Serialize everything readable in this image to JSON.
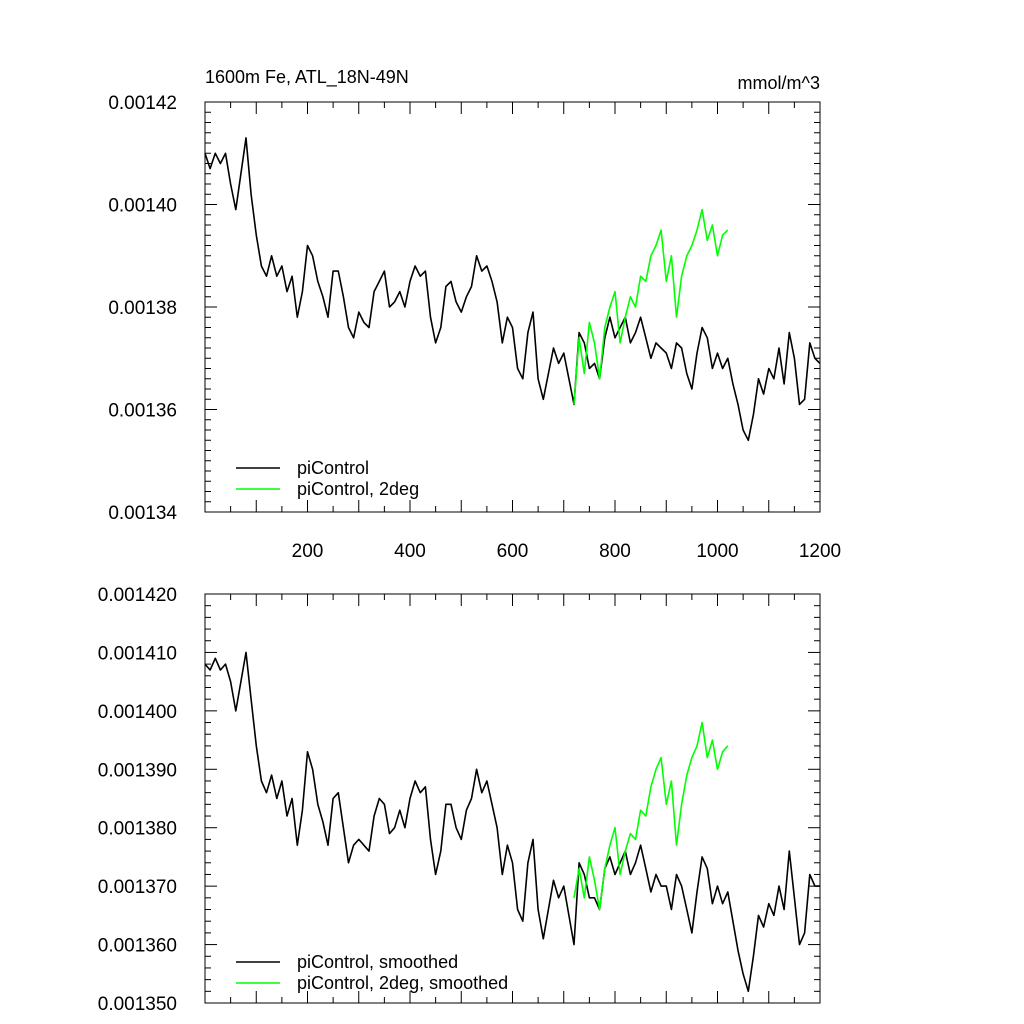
{
  "chart_data": [
    {
      "type": "line",
      "title": "1600m Fe, ATL_18N-49N",
      "units": "mmol/m^3",
      "xlim": [
        0,
        1200
      ],
      "ylim": [
        0.00134,
        0.00142
      ],
      "x_ticks": [
        200,
        400,
        600,
        800,
        1000,
        1200
      ],
      "y_ticks": [
        "0.00134",
        "0.00136",
        "0.00138",
        "0.00140",
        "0.00142"
      ],
      "legend_position": "bottom-left",
      "series": [
        {
          "name": "piControl",
          "color": "#000000",
          "x": [
            0,
            10,
            20,
            30,
            40,
            50,
            60,
            70,
            80,
            90,
            100,
            110,
            120,
            130,
            140,
            150,
            160,
            170,
            180,
            190,
            200,
            210,
            220,
            230,
            240,
            250,
            260,
            270,
            280,
            290,
            300,
            310,
            320,
            330,
            340,
            350,
            360,
            370,
            380,
            390,
            400,
            410,
            420,
            430,
            440,
            450,
            460,
            470,
            480,
            490,
            500,
            510,
            520,
            530,
            540,
            550,
            560,
            570,
            580,
            590,
            600,
            610,
            620,
            630,
            640,
            650,
            660,
            670,
            680,
            690,
            700,
            710,
            720,
            730,
            740,
            750,
            760,
            770,
            780,
            790,
            800,
            810,
            820,
            830,
            840,
            850,
            860,
            870,
            880,
            890,
            900,
            910,
            920,
            930,
            940,
            950,
            960,
            970,
            980,
            990,
            1000,
            1010,
            1020,
            1030,
            1040,
            1050,
            1060,
            1070,
            1080,
            1090,
            1100,
            1110,
            1120,
            1130,
            1140,
            1150,
            1160,
            1170,
            1180,
            1190,
            1200
          ],
          "values": [
            0.00141,
            0.001407,
            0.00141,
            0.001408,
            0.00141,
            0.001404,
            0.001399,
            0.001406,
            0.001413,
            0.001402,
            0.001394,
            0.001388,
            0.001386,
            0.00139,
            0.001386,
            0.001388,
            0.001383,
            0.001386,
            0.001378,
            0.001383,
            0.001392,
            0.00139,
            0.001385,
            0.001382,
            0.001378,
            0.001387,
            0.001387,
            0.001382,
            0.001376,
            0.001374,
            0.001379,
            0.001377,
            0.001376,
            0.001383,
            0.001385,
            0.001387,
            0.00138,
            0.001381,
            0.001383,
            0.00138,
            0.001385,
            0.001388,
            0.001386,
            0.001387,
            0.001378,
            0.001373,
            0.001376,
            0.001384,
            0.001385,
            0.001381,
            0.001379,
            0.001382,
            0.001384,
            0.00139,
            0.001387,
            0.001388,
            0.001385,
            0.001381,
            0.001373,
            0.001378,
            0.001376,
            0.001368,
            0.001366,
            0.001375,
            0.001379,
            0.001366,
            0.001362,
            0.001367,
            0.001372,
            0.001369,
            0.001371,
            0.001366,
            0.001361,
            0.001375,
            0.001373,
            0.001368,
            0.001369,
            0.001366,
            0.001374,
            0.001378,
            0.001374,
            0.001376,
            0.001378,
            0.001373,
            0.001375,
            0.001378,
            0.001374,
            0.00137,
            0.001373,
            0.001372,
            0.001371,
            0.001368,
            0.001373,
            0.001372,
            0.001367,
            0.001364,
            0.001371,
            0.001376,
            0.001374,
            0.001368,
            0.001371,
            0.001368,
            0.00137,
            0.001365,
            0.001361,
            0.001356,
            0.001354,
            0.001359,
            0.001366,
            0.001363,
            0.001368,
            0.001366,
            0.001372,
            0.001365,
            0.001375,
            0.00137,
            0.001361,
            0.001362,
            0.001373,
            0.00137,
            0.001369
          ]
        },
        {
          "name": "piControl, 2deg",
          "color": "#00ff00",
          "x": [
            720,
            730,
            740,
            750,
            760,
            770,
            780,
            790,
            800,
            810,
            820,
            830,
            840,
            850,
            860,
            870,
            880,
            890,
            900,
            910,
            920,
            930,
            940,
            950,
            960,
            970,
            980,
            990,
            1000,
            1010,
            1020
          ],
          "values": [
            0.001361,
            0.001374,
            0.001367,
            0.001377,
            0.001373,
            0.001366,
            0.001376,
            0.00138,
            0.001383,
            0.001373,
            0.001378,
            0.001382,
            0.00138,
            0.001386,
            0.001385,
            0.00139,
            0.001392,
            0.001395,
            0.001385,
            0.00139,
            0.001378,
            0.001386,
            0.00139,
            0.001392,
            0.001395,
            0.001399,
            0.001393,
            0.001396,
            0.00139,
            0.001394,
            0.001395
          ]
        }
      ]
    },
    {
      "type": "line",
      "title": "",
      "xlim": [
        0,
        1200
      ],
      "ylim": [
        0.00135,
        0.00142
      ],
      "y_ticks": [
        "0.001350",
        "0.001360",
        "0.001370",
        "0.001380",
        "0.001390",
        "0.001400",
        "0.001410",
        "0.001420"
      ],
      "legend_position": "bottom-left",
      "series": [
        {
          "name": "piControl, smoothed",
          "color": "#000000",
          "x": [
            0,
            10,
            20,
            30,
            40,
            50,
            60,
            70,
            80,
            90,
            100,
            110,
            120,
            130,
            140,
            150,
            160,
            170,
            180,
            190,
            200,
            210,
            220,
            230,
            240,
            250,
            260,
            270,
            280,
            290,
            300,
            310,
            320,
            330,
            340,
            350,
            360,
            370,
            380,
            390,
            400,
            410,
            420,
            430,
            440,
            450,
            460,
            470,
            480,
            490,
            500,
            510,
            520,
            530,
            540,
            550,
            560,
            570,
            580,
            590,
            600,
            610,
            620,
            630,
            640,
            650,
            660,
            670,
            680,
            690,
            700,
            710,
            720,
            730,
            740,
            750,
            760,
            770,
            780,
            790,
            800,
            810,
            820,
            830,
            840,
            850,
            860,
            870,
            880,
            890,
            900,
            910,
            920,
            930,
            940,
            950,
            960,
            970,
            980,
            990,
            1000,
            1010,
            1020,
            1030,
            1040,
            1050,
            1060,
            1070,
            1080,
            1090,
            1100,
            1110,
            1120,
            1130,
            1140,
            1150,
            1160,
            1170,
            1180,
            1190,
            1200
          ],
          "values": [
            0.001408,
            0.001407,
            0.001409,
            0.001407,
            0.001408,
            0.001405,
            0.0014,
            0.001405,
            0.00141,
            0.001402,
            0.001394,
            0.001388,
            0.001386,
            0.001389,
            0.001385,
            0.001388,
            0.001382,
            0.001385,
            0.001377,
            0.001383,
            0.001393,
            0.00139,
            0.001384,
            0.001381,
            0.001377,
            0.001385,
            0.001386,
            0.00138,
            0.001374,
            0.001377,
            0.001378,
            0.001377,
            0.001376,
            0.001382,
            0.001385,
            0.001384,
            0.001379,
            0.00138,
            0.001383,
            0.00138,
            0.001385,
            0.001388,
            0.001386,
            0.001387,
            0.001378,
            0.001372,
            0.001376,
            0.001384,
            0.001384,
            0.00138,
            0.001378,
            0.001383,
            0.001385,
            0.00139,
            0.001386,
            0.001388,
            0.001384,
            0.00138,
            0.001372,
            0.001377,
            0.001374,
            0.001366,
            0.001364,
            0.001374,
            0.001378,
            0.001366,
            0.001361,
            0.001366,
            0.001371,
            0.001368,
            0.00137,
            0.001365,
            0.00136,
            0.001374,
            0.001372,
            0.001368,
            0.001368,
            0.001366,
            0.001373,
            0.001375,
            0.001372,
            0.001374,
            0.001376,
            0.001372,
            0.001374,
            0.001377,
            0.001373,
            0.001369,
            0.001372,
            0.00137,
            0.00137,
            0.001366,
            0.001372,
            0.00137,
            0.001366,
            0.001362,
            0.001369,
            0.001375,
            0.001373,
            0.001367,
            0.00137,
            0.001367,
            0.001369,
            0.001364,
            0.001359,
            0.001355,
            0.001352,
            0.001358,
            0.001365,
            0.001363,
            0.001367,
            0.001365,
            0.00137,
            0.001366,
            0.001376,
            0.001368,
            0.00136,
            0.001362,
            0.001372,
            0.00137,
            0.00137
          ]
        },
        {
          "name": "piControl, 2deg, smoothed",
          "color": "#00ff00",
          "x": [
            720,
            730,
            740,
            750,
            760,
            770,
            780,
            790,
            800,
            810,
            820,
            830,
            840,
            850,
            860,
            870,
            880,
            890,
            900,
            910,
            920,
            930,
            940,
            950,
            960,
            970,
            980,
            990,
            1000,
            1010,
            1020
          ],
          "values": [
            0.001368,
            0.001373,
            0.001368,
            0.001375,
            0.001371,
            0.001366,
            0.001373,
            0.001377,
            0.00138,
            0.001372,
            0.001376,
            0.001379,
            0.001378,
            0.001383,
            0.001382,
            0.001387,
            0.00139,
            0.001392,
            0.001384,
            0.001388,
            0.001377,
            0.001384,
            0.001389,
            0.001392,
            0.001394,
            0.001398,
            0.001392,
            0.001395,
            0.00139,
            0.001393,
            0.001394
          ]
        }
      ]
    }
  ]
}
